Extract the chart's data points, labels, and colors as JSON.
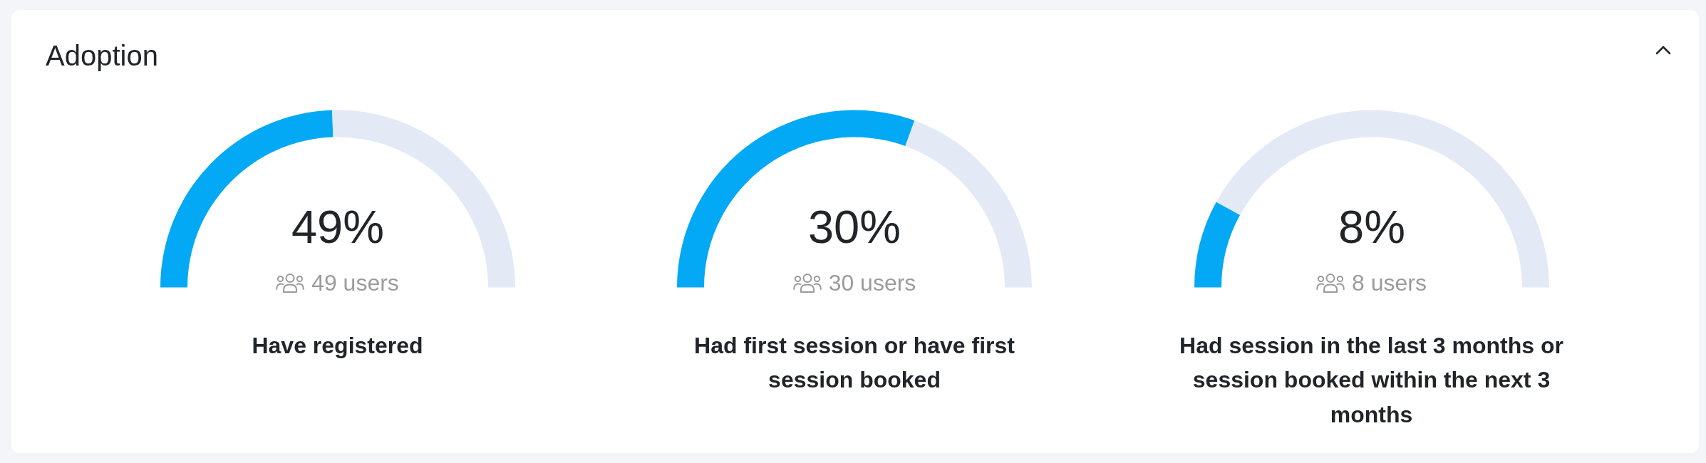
{
  "chart_data": [
    {
      "type": "other",
      "title": "Adoption"
    },
    {
      "type": "donut",
      "title": "Have registered",
      "categories": [
        null,
        null
      ],
      "values": [
        49,
        51
      ],
      "colors": [
        "#03a9f4",
        "#e4e9f6"
      ],
      "annotations": [
        "49%",
        "49 users"
      ]
    },
    {
      "type": "donut",
      "title": "Had first session or have first session booked",
      "categories": [
        null,
        null
      ],
      "values": [
        61,
        39
      ],
      "colors": [
        "#03a9f4",
        "#e4e9f6"
      ],
      "annotations": [
        "30%",
        "30 users"
      ]
    },
    {
      "type": "donut",
      "title": "Had session in the last 3 months or session booked within the next 3 months",
      "categories": [
        null,
        null
      ],
      "values": [
        16,
        84
      ],
      "colors": [
        "#03a9f4",
        "#e4e9f6"
      ],
      "annotations": [
        "8%",
        "8 users"
      ]
    }
  ]
}
